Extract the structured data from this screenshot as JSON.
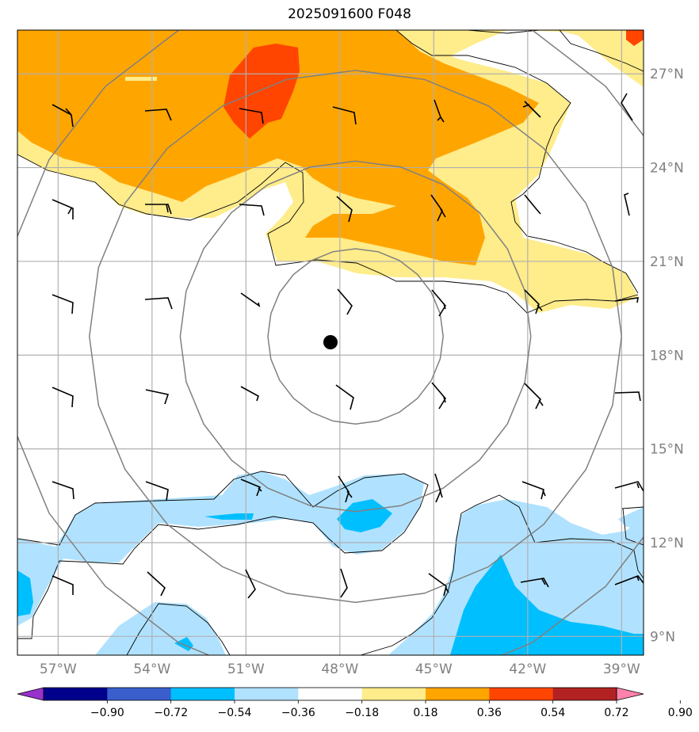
{
  "title": "2025091600 F048",
  "map": {
    "lon_range": [
      -58.3,
      -38.3
    ],
    "lat_range": [
      8.4,
      28.4
    ],
    "lon_ticks": [
      {
        "value": -57,
        "label": "57°W"
      },
      {
        "value": -54,
        "label": "54°W"
      },
      {
        "value": -51,
        "label": "51°W"
      },
      {
        "value": -48,
        "label": "48°W"
      },
      {
        "value": -45,
        "label": "45°W"
      },
      {
        "value": -42,
        "label": "42°W"
      },
      {
        "value": -39,
        "label": "39°W"
      }
    ],
    "lat_ticks": [
      {
        "value": 9,
        "label": "9°N"
      },
      {
        "value": 12,
        "label": "12°N"
      },
      {
        "value": 15,
        "label": "15°N"
      },
      {
        "value": 18,
        "label": "18°N"
      },
      {
        "value": 21,
        "label": "21°N"
      },
      {
        "value": 24,
        "label": "24°N"
      },
      {
        "value": 27,
        "label": "27°N"
      }
    ],
    "storm_center": {
      "lon": -47.5,
      "lat": 18.6
    },
    "range_rings_deg": [
      2.8,
      5.6,
      8.5,
      11.3
    ],
    "grid": true
  },
  "colorbar": {
    "ticks": [
      "−0.90",
      "−0.72",
      "−0.54",
      "−0.36",
      "−0.18",
      "0.18",
      "0.36",
      "0.54",
      "0.72",
      "0.90"
    ],
    "colors": [
      "#9932cc",
      "#00008b",
      "#3a5fcd",
      "#00bfff",
      "#b0e2ff",
      "#ffffff",
      "#ffec8b",
      "#ffa500",
      "#ff4500",
      "#b22222",
      "#ff82ab"
    ],
    "extend": "both"
  },
  "colors": {
    "grid": "#b0b0b0",
    "ring": "#808080",
    "contour": "#000000",
    "light_yellow": "#ffec8b",
    "orange": "#ffa500",
    "red_orange": "#ff4500",
    "light_blue": "#b0e2ff",
    "deep_sky_blue": "#00bfff"
  }
}
